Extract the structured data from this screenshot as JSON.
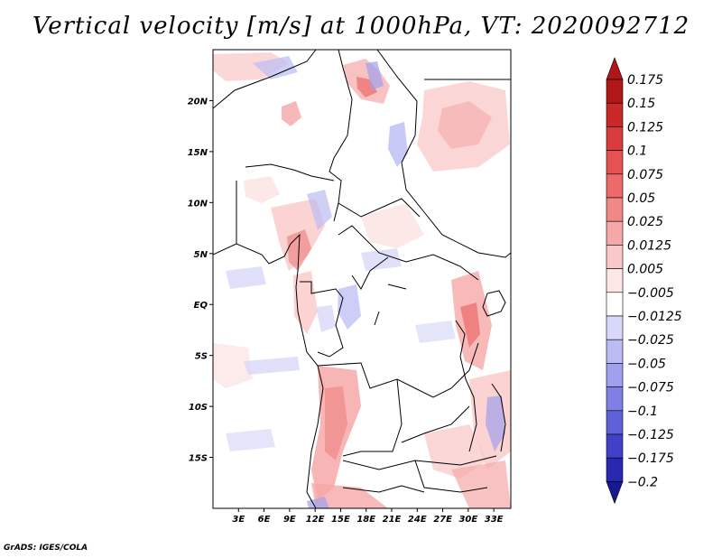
{
  "title": "Vertical velocity [m/s] at 1000hPa, VT: 2020092712",
  "credit": "GrADS: IGES/COLA",
  "map": {
    "lon_range": [
      0,
      35
    ],
    "lat_range": [
      -20,
      25
    ],
    "lon_ticks": [
      "3E",
      "6E",
      "9E",
      "12E",
      "15E",
      "18E",
      "21E",
      "24E",
      "27E",
      "30E",
      "33E"
    ],
    "lat_ticks": [
      "20N",
      "15N",
      "10N",
      "5N",
      "EQ",
      "5S",
      "10S",
      "15S"
    ]
  },
  "colorbar": {
    "levels": [
      "0.175",
      "0.15",
      "0.125",
      "0.1",
      "0.075",
      "0.05",
      "0.025",
      "0.0125",
      "0.005",
      "−0.005",
      "−0.0125",
      "−0.025",
      "−0.05",
      "−0.075",
      "−0.1",
      "−0.125",
      "−0.175",
      "−0.2"
    ],
    "colors": [
      "#b01818",
      "#c82828",
      "#d83c3c",
      "#e45252",
      "#ec6a6a",
      "#f08888",
      "#f6a8a8",
      "#fac8c8",
      "#fde6e6",
      "#ffffff",
      "#d8d8fa",
      "#bcbcf4",
      "#a0a0ee",
      "#8080e4",
      "#6060d8",
      "#4040c8",
      "#2828b0",
      "#181890"
    ]
  }
}
